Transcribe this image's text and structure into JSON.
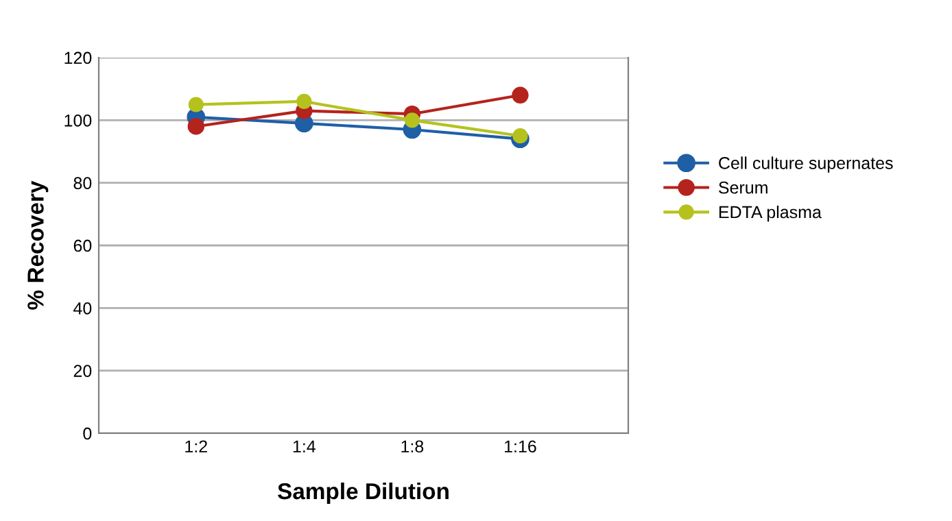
{
  "chart_data": {
    "type": "line",
    "xlabel": "Sample Dilution",
    "ylabel": "% Recovery",
    "categories": [
      "1:2",
      "1:4",
      "1:8",
      "1:16"
    ],
    "series": [
      {
        "name": "Cell culture supernates",
        "color": "#1f5fa6",
        "values": [
          101,
          99,
          97,
          94
        ]
      },
      {
        "name": "Serum",
        "color": "#b5231d",
        "values": [
          98,
          103,
          102,
          108
        ]
      },
      {
        "name": "EDTA plasma",
        "color": "#b5c21e",
        "values": [
          105,
          106,
          100,
          95
        ]
      }
    ],
    "ylim": [
      0,
      120
    ],
    "yticks": [
      0,
      20,
      40,
      60,
      80,
      100,
      120
    ],
    "grid": "y",
    "legend": "right",
    "marker": "circle",
    "line_style": "solid"
  }
}
